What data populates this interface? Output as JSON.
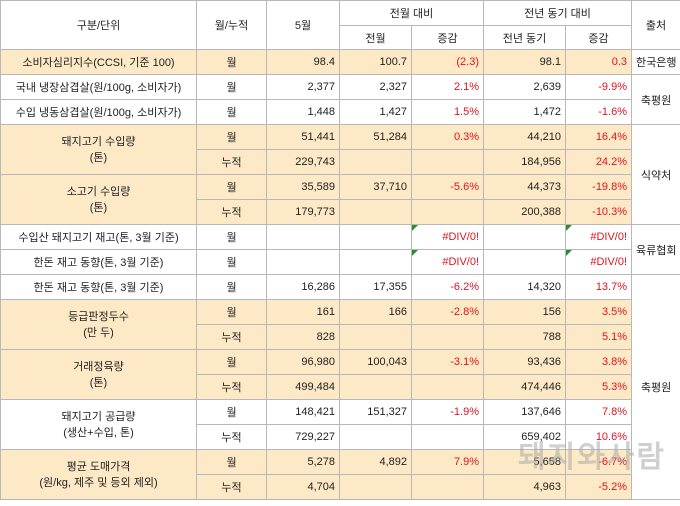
{
  "header": {
    "col_label": "구분/단위",
    "col_type": "월/누적",
    "col_may": "5월",
    "group_prev_month": "전월 대비",
    "group_prev_year": "전년 동기 대비",
    "col_source": "출처",
    "sub_prev_month": "전월",
    "sub_change1": "증감",
    "sub_prev_year": "전년 동기",
    "sub_change2": "증감"
  },
  "rows": {
    "r1": {
      "label": "소비자심리지수(CCSI, 기준 100)",
      "type": "월",
      "may": "98.4",
      "pm": "100.7",
      "pm_chg": "(2.3)",
      "py": "98.1",
      "py_chg": "0.3"
    },
    "r2": {
      "label": "국내 냉장삼겹살(원/100g, 소비자가)",
      "type": "월",
      "may": "2,377",
      "pm": "2,327",
      "pm_chg": "2.1%",
      "py": "2,639",
      "py_chg": "-9.9%"
    },
    "r3": {
      "label": "수입 냉동삼겹살(원/100g, 소비자가)",
      "type": "월",
      "may": "1,448",
      "pm": "1,427",
      "pm_chg": "1.5%",
      "py": "1,472",
      "py_chg": "-1.6%"
    },
    "r4": {
      "label": "돼지고기 수입량",
      "unit": "(톤)",
      "type": "월",
      "may": "51,441",
      "pm": "51,284",
      "pm_chg": "0.3%",
      "py": "44,210",
      "py_chg": "16.4%"
    },
    "r5": {
      "type": "누적",
      "may": "229,743",
      "py": "184,956",
      "py_chg": "24.2%"
    },
    "r6": {
      "label": "소고기 수입량",
      "unit": "(톤)",
      "type": "월",
      "may": "35,589",
      "pm": "37,710",
      "pm_chg": "-5.6%",
      "py": "44,373",
      "py_chg": "-19.8%"
    },
    "r7": {
      "type": "누적",
      "may": "179,773",
      "py": "200,388",
      "py_chg": "-10.3%"
    },
    "r8": {
      "label": "수입산 돼지고기 재고(톤, 3월 기준)",
      "type": "월",
      "pm_chg": "#DIV/0!",
      "py_chg": "#DIV/0!"
    },
    "r9": {
      "label": "한돈 재고 동향(톤, 3월 기준)",
      "type": "월",
      "pm_chg": "#DIV/0!",
      "py_chg": "#DIV/0!"
    },
    "r10": {
      "label": "한돈 재고 동향(톤, 3월 기준)",
      "type": "월",
      "may": "16,286",
      "pm": "17,355",
      "pm_chg": "-6.2%",
      "py": "14,320",
      "py_chg": "13.7%"
    },
    "r11": {
      "label": "등급판정두수",
      "unit": "(만 두)",
      "type": "월",
      "may": "161",
      "pm": "166",
      "pm_chg": "-2.8%",
      "py": "156",
      "py_chg": "3.5%"
    },
    "r12": {
      "type": "누적",
      "may": "828",
      "py": "788",
      "py_chg": "5.1%"
    },
    "r13": {
      "label": "거래정육량",
      "unit": "(톤)",
      "type": "월",
      "may": "96,980",
      "pm": "100,043",
      "pm_chg": "-3.1%",
      "py": "93,436",
      "py_chg": "3.8%"
    },
    "r14": {
      "type": "누적",
      "may": "499,484",
      "py": "474,446",
      "py_chg": "5.3%"
    },
    "r15": {
      "label": "돼지고기 공급량",
      "unit": "(생산+수입, 톤)",
      "type": "월",
      "may": "148,421",
      "pm": "151,327",
      "pm_chg": "-1.9%",
      "py": "137,646",
      "py_chg": "7.8%"
    },
    "r16": {
      "type": "누적",
      "may": "729,227",
      "py": "659,402",
      "py_chg": "10.6%"
    },
    "r17": {
      "label": "평균 도매가격",
      "unit": "(원/kg, 제주 및 등외 제외)",
      "type": "월",
      "may": "5,278",
      "pm": "4,892",
      "pm_chg": "7.9%",
      "py": "5,658",
      "py_chg": "-6.7%"
    },
    "r18": {
      "type": "누적",
      "may": "4,704",
      "py": "4,963",
      "py_chg": "-5.2%"
    }
  },
  "sources": {
    "s1": "한국은행",
    "s2": "축평원",
    "s3": "식약처",
    "s4": "육류협회",
    "s5": "축평원"
  },
  "watermark": "돼지와사람",
  "colors": {
    "highlight": "#fde9c6",
    "negative": "#e0141e",
    "error_flag": "#2e8b2e"
  }
}
